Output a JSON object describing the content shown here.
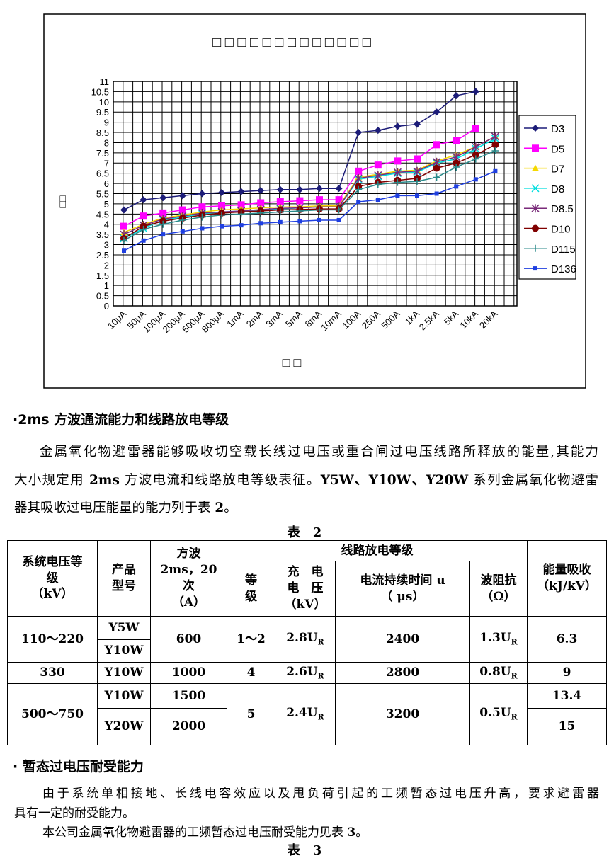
{
  "chart_data": {
    "type": "line",
    "title": "□ □ □ □ □ □ □ □ □ □ □ □ □",
    "xlabel": "□ □",
    "ylabel": "□□",
    "categories": [
      "10μA",
      "50μA",
      "100μA",
      "200μA",
      "500μA",
      "800μA",
      "1mA",
      "2mA",
      "3mA",
      "5mA",
      "8mA",
      "10mA",
      "100A",
      "250A",
      "500A",
      "1kA",
      "2.5kA",
      "5kA",
      "10kA",
      "20kA"
    ],
    "ylim": [
      0,
      11
    ],
    "yticks": [
      0,
      0.5,
      1,
      1.5,
      2,
      2.5,
      3,
      3.5,
      4,
      4.5,
      5,
      5.5,
      6,
      6.5,
      7,
      7.5,
      8,
      8.5,
      9,
      9.5,
      10,
      10.5,
      11
    ],
    "grid": true,
    "legend": "right",
    "series": [
      {
        "name": "D3",
        "color": "#1c1c78",
        "marker": "diamond",
        "values": [
          4.7,
          5.2,
          5.3,
          5.4,
          5.5,
          5.55,
          5.6,
          5.65,
          5.7,
          5.7,
          5.75,
          5.75,
          8.5,
          8.6,
          8.8,
          8.9,
          9.5,
          10.3,
          10.5,
          null
        ]
      },
      {
        "name": "D5",
        "color": "#ff00ff",
        "marker": "square",
        "values": [
          3.9,
          4.4,
          4.55,
          4.7,
          4.85,
          4.9,
          4.95,
          5.05,
          5.1,
          5.15,
          5.2,
          5.2,
          6.6,
          6.9,
          7.1,
          7.2,
          7.9,
          8.1,
          8.7,
          null
        ]
      },
      {
        "name": "D7",
        "color": "#f5d800",
        "marker": "triangle",
        "values": [
          3.6,
          4.0,
          4.3,
          4.45,
          4.6,
          4.7,
          4.75,
          4.8,
          4.85,
          4.85,
          4.9,
          4.9,
          6.3,
          6.45,
          6.6,
          6.65,
          7.1,
          7.4,
          7.8,
          8.3
        ]
      },
      {
        "name": "D8",
        "color": "#00dede",
        "marker": "x",
        "values": [
          3.3,
          3.8,
          4.2,
          4.35,
          4.5,
          4.6,
          4.65,
          4.7,
          4.75,
          4.8,
          4.85,
          4.85,
          6.2,
          6.35,
          6.5,
          6.55,
          7.0,
          7.2,
          7.7,
          8.2
        ]
      },
      {
        "name": "D8.5",
        "color": "#7a2a7a",
        "marker": "star",
        "values": [
          3.5,
          3.95,
          4.25,
          4.4,
          4.55,
          4.6,
          4.65,
          4.72,
          4.78,
          4.8,
          4.85,
          4.85,
          6.25,
          6.4,
          6.55,
          6.6,
          7.05,
          7.3,
          7.8,
          8.3
        ]
      },
      {
        "name": "D10",
        "color": "#800000",
        "marker": "circle",
        "values": [
          3.3,
          3.9,
          4.15,
          4.3,
          4.45,
          4.55,
          4.6,
          4.65,
          4.7,
          4.72,
          4.75,
          4.75,
          5.85,
          6.05,
          6.15,
          6.25,
          6.75,
          7.0,
          7.4,
          7.9
        ]
      },
      {
        "name": "D115",
        "color": "#2a8a8a",
        "marker": "plus",
        "values": [
          3.2,
          3.75,
          4.0,
          4.2,
          4.35,
          4.45,
          4.5,
          4.55,
          4.6,
          4.65,
          4.7,
          4.7,
          5.7,
          5.95,
          6.05,
          6.1,
          6.3,
          6.8,
          7.2,
          7.6
        ]
      },
      {
        "name": "D136",
        "color": "#1f3fe0",
        "marker": "smallsquare",
        "values": [
          2.7,
          3.2,
          3.5,
          3.65,
          3.8,
          3.9,
          3.95,
          4.05,
          4.1,
          4.15,
          4.2,
          4.2,
          5.1,
          5.2,
          5.4,
          5.4,
          5.5,
          5.85,
          6.2,
          6.6
        ]
      }
    ]
  },
  "document": {
    "section1": {
      "heading": "·2ms 方波通流能力和线路放电等级",
      "lines": [
        [
          {
            "text": "金属氧化物避雷器能够吸收切空载长线过电压或重合闸过电压线路所释放的能量,其能力",
            "bold": false
          }
        ],
        [
          {
            "text": "大小规定用 ",
            "bold": false
          },
          {
            "text": "2ms",
            "bold": true
          },
          {
            "text": " 方波电流和线路放电等级表征。",
            "bold": false
          },
          {
            "text": "Y5W、Y10W、Y20W",
            "bold": true
          },
          {
            "text": " 系列金属氧化物避雷",
            "bold": false
          }
        ],
        [
          {
            "text": "器其吸收过电压能量的能力列于表 ",
            "bold": false
          },
          {
            "text": "2",
            "bold": true
          },
          {
            "text": "。",
            "bold": false
          }
        ]
      ]
    },
    "table2": {
      "caption": "表　2",
      "header_rows": [
        [
          {
            "lines": [
              "系统电压等",
              "级",
              "（kV）"
            ],
            "rowspan": 2
          },
          {
            "lines": [
              "产品",
              "型号"
            ],
            "rowspan": 2
          },
          {
            "lines": [
              "方波",
              "2ms，20",
              "次",
              "（A）"
            ],
            "rowspan": 2
          },
          {
            "lines": [
              "线路放电等级"
            ],
            "colspan": 4
          },
          {
            "lines": [
              "能量吸收",
              "（kJ/kV）"
            ],
            "rowspan": 2
          }
        ],
        [
          {
            "lines": [
              "等",
              "级"
            ]
          },
          {
            "lines": [
              "充　电",
              "电　压",
              "（kV）"
            ]
          },
          {
            "lines": [
              "电流持续时间 u",
              "（ μs）"
            ]
          },
          {
            "lines": [
              "波阻抗",
              "（Ω）"
            ]
          }
        ]
      ],
      "body_rows": [
        [
          {
            "text": "110～220",
            "rowspan": 2
          },
          {
            "text": "Y5W"
          },
          {
            "text": "600",
            "rowspan": 2
          },
          {
            "text": "1～2",
            "rowspan": 2
          },
          {
            "text": "2.8U",
            "sub": "R",
            "rowspan": 2
          },
          {
            "text": "2400",
            "rowspan": 2
          },
          {
            "text": "1.3U",
            "sub": "R",
            "rowspan": 2
          },
          {
            "text": "6.3",
            "rowspan": 2
          }
        ],
        [
          {
            "text": "Y10W"
          }
        ],
        [
          {
            "text": "330"
          },
          {
            "text": "Y10W"
          },
          {
            "text": "1000"
          },
          {
            "text": "4"
          },
          {
            "text": "2.6U",
            "sub": "R"
          },
          {
            "text": "2800"
          },
          {
            "text": "0.8U",
            "sub": "R"
          },
          {
            "text": "9"
          }
        ],
        [
          {
            "text": "500～750",
            "rowspan": 2
          },
          {
            "text": "Y10W"
          },
          {
            "text": "1500"
          },
          {
            "text": "5",
            "rowspan": 2
          },
          {
            "text": "2.4U",
            "sub": "R",
            "rowspan": 2
          },
          {
            "text": "3200",
            "rowspan": 2
          },
          {
            "text": "0.5U",
            "sub": "R",
            "rowspan": 2
          },
          {
            "text": "13.4"
          }
        ],
        [
          {
            "text": "Y20W"
          },
          {
            "text": "2000"
          },
          {
            "text": "15"
          }
        ]
      ]
    },
    "section2": {
      "heading": "·  暂态过电压耐受能力",
      "lines": [
        [
          {
            "text": "由于系统单相接地、长线电容效应以及甩负荷引起的工频暂态过电压升高，要求避雷器",
            "bold": false
          }
        ],
        [
          {
            "text": "具有一定的耐受能力。",
            "bold": false
          }
        ],
        [
          {
            "text": "本公司金属氧化物避雷器的工频暂态过电压耐受能力见表 ",
            "bold": false
          },
          {
            "text": "3",
            "bold": true
          },
          {
            "text": "。",
            "bold": false
          }
        ]
      ]
    },
    "table3": {
      "caption": "表　3"
    }
  }
}
